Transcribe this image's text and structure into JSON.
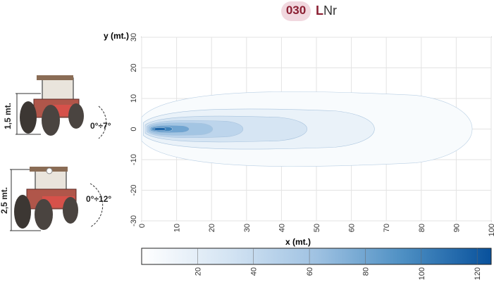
{
  "header": {
    "code": "030",
    "suffix_first": "L",
    "suffix_rest": "Nr"
  },
  "tractors": [
    {
      "height_label": "1,5 mt.",
      "angle_label": "0°÷7°"
    },
    {
      "height_label": "2,5 mt.",
      "angle_label": "0°÷12°"
    }
  ],
  "colors": {
    "brand": "#8a1f32",
    "code_badge": "#f1d8df",
    "tractor_body": "#b0564a",
    "colormap_low": "#ffffff",
    "colormap_high": "#08519c"
  },
  "chart_data": {
    "type": "heatmap",
    "title": "",
    "xlabel": "x (mt.)",
    "ylabel": "y (mt.)",
    "xlim": [
      0,
      100
    ],
    "ylim": [
      -30,
      30
    ],
    "xticks": [
      0,
      10,
      20,
      30,
      40,
      50,
      60,
      70,
      80,
      90,
      100
    ],
    "yticks": [
      -30,
      -20,
      -10,
      0,
      10,
      20,
      30
    ],
    "grid": true,
    "contour_levels": [
      {
        "level": 5,
        "x_extent": [
          0,
          98
        ],
        "y_halfwidth": 13
      },
      {
        "level": 15,
        "x_extent": [
          0.5,
          69
        ],
        "y_halfwidth": 7
      },
      {
        "level": 30,
        "x_extent": [
          1,
          49
        ],
        "y_halfwidth": 4.5
      },
      {
        "level": 45,
        "x_extent": [
          1.5,
          30
        ],
        "y_halfwidth": 3
      },
      {
        "level": 60,
        "x_extent": [
          2,
          21
        ],
        "y_halfwidth": 2.2
      },
      {
        "level": 80,
        "x_extent": [
          2.5,
          14
        ],
        "y_halfwidth": 1.3
      },
      {
        "level": 100,
        "x_extent": [
          3,
          9
        ],
        "y_halfwidth": 0.8
      },
      {
        "level": 115,
        "x_extent": [
          3.5,
          7
        ],
        "y_halfwidth": 0.5
      }
    ],
    "colorbar": {
      "range": [
        0,
        125
      ],
      "ticks": [
        20,
        40,
        60,
        80,
        100,
        120
      ]
    }
  }
}
